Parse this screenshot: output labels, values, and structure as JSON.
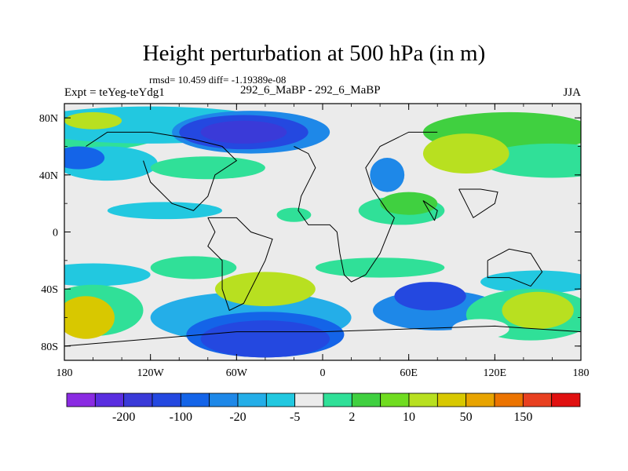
{
  "chart_data": {
    "type": "heatmap",
    "title": "Height perturbation at 500 hPa (in m)",
    "stats_line": "rmsd= 10.459 diff= -1.19389e-08",
    "experiment_label": "Expt = teYeg-teYdg1",
    "subtitle": "292_6_MaBP - 292_6_MaBP",
    "season": "JJA",
    "x_ticks": [
      "180",
      "120W",
      "60W",
      "0",
      "60E",
      "120E",
      "180"
    ],
    "y_ticks": [
      "80N",
      "40N",
      "0",
      "40S",
      "80S"
    ],
    "x_range_deg": [
      -180,
      180
    ],
    "y_range_deg": [
      -90,
      90
    ],
    "colorbar": {
      "colors": [
        "#8a2be2",
        "#5a2ee0",
        "#3a3ad8",
        "#2448e0",
        "#1464e8",
        "#1e88e8",
        "#24aee8",
        "#22c8e0",
        "#ebebeb",
        "#30e098",
        "#40d040",
        "#70dc20",
        "#b8e020",
        "#d8c800",
        "#e8a400",
        "#ec7400",
        "#e84020",
        "#e01010"
      ],
      "labels": [
        "-200",
        "-100",
        "-20",
        "-5",
        "2",
        "10",
        "50",
        "150"
      ],
      "label_positions": [
        2,
        4,
        6,
        8,
        10,
        12,
        14,
        16
      ]
    },
    "features": [
      {
        "name": "polar-low-north",
        "lon": -55,
        "lat": 70,
        "rx": 45,
        "ry": 12,
        "level": 3
      },
      {
        "name": "polar-low-north-core",
        "lon": -55,
        "lat": 70,
        "rx": 30,
        "ry": 8,
        "level": 2
      },
      {
        "name": "pacific-low-north",
        "lon": -170,
        "lat": 52,
        "rx": 18,
        "ry": 8,
        "level": 4
      },
      {
        "name": "pacific-high-north",
        "lon": 100,
        "lat": 55,
        "rx": 30,
        "ry": 14,
        "level": 12
      },
      {
        "name": "atlantic-high-north",
        "lon": -160,
        "lat": 78,
        "rx": 20,
        "ry": 6,
        "level": 12
      },
      {
        "name": "eurasia-low",
        "lon": 45,
        "lat": 40,
        "rx": 12,
        "ry": 12,
        "level": 5
      },
      {
        "name": "subtropic-green",
        "lon": 60,
        "lat": 20,
        "rx": 20,
        "ry": 8,
        "level": 10
      },
      {
        "name": "south-pacific-high",
        "lon": -165,
        "lat": -60,
        "rx": 20,
        "ry": 15,
        "level": 13
      },
      {
        "name": "south-atlantic-high",
        "lon": -40,
        "lat": -40,
        "rx": 35,
        "ry": 12,
        "level": 12
      },
      {
        "name": "antarctic-low",
        "lon": -40,
        "lat": -75,
        "rx": 45,
        "ry": 13,
        "level": 3
      },
      {
        "name": "indian-low-south",
        "lon": 75,
        "lat": -45,
        "rx": 25,
        "ry": 10,
        "level": 3
      },
      {
        "name": "australia-high",
        "lon": 150,
        "lat": -55,
        "rx": 25,
        "ry": 13,
        "level": 12
      },
      {
        "name": "southern-ring",
        "lon": 110,
        "lat": -68,
        "rx": 20,
        "ry": 7,
        "level": 8
      }
    ]
  }
}
